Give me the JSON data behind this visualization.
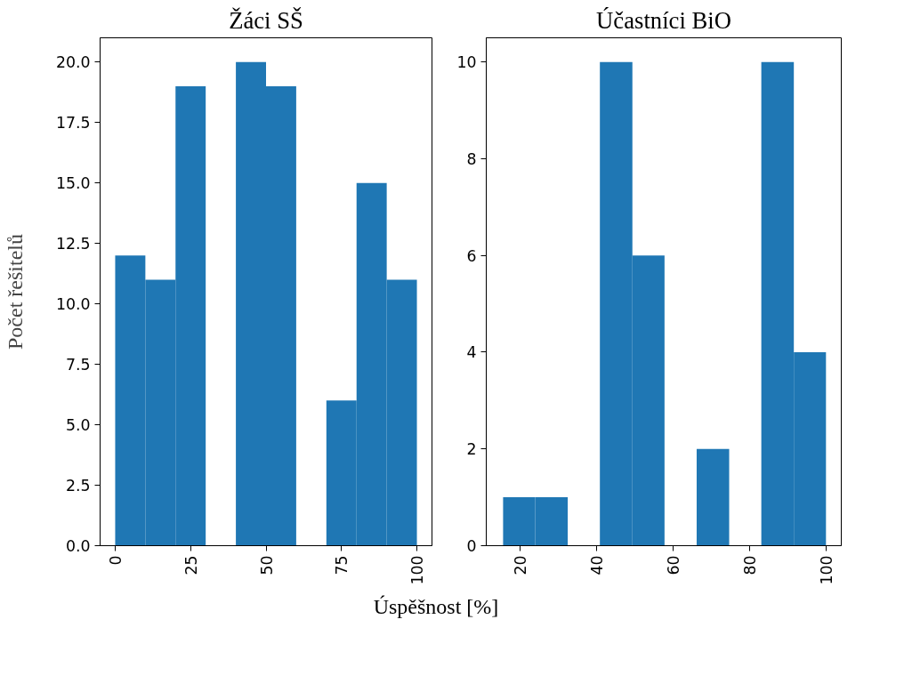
{
  "chart_data": [
    {
      "type": "histogram",
      "title": "Žáci SŠ",
      "ylabel": "Počet řešitelů",
      "xlabel": "Úspěšnost [%]",
      "bins": [
        0,
        10,
        20,
        30,
        40,
        50,
        60,
        70,
        80,
        90,
        100
      ],
      "values": [
        12,
        11,
        19,
        0,
        20,
        19,
        0,
        6,
        15,
        11
      ],
      "color": "#1f77b4",
      "xlim": [
        -5,
        105
      ],
      "ylim": [
        0,
        21
      ],
      "xticks": [
        0,
        25,
        50,
        75,
        100
      ],
      "yticks": [
        {
          "value": 0,
          "label": "0.0"
        },
        {
          "value": 2.5,
          "label": "2.5"
        },
        {
          "value": 5,
          "label": "5.0"
        },
        {
          "value": 7.5,
          "label": "7.5"
        },
        {
          "value": 10,
          "label": "10.0"
        },
        {
          "value": 12.5,
          "label": "12.5"
        },
        {
          "value": 15,
          "label": "15.0"
        },
        {
          "value": 17.5,
          "label": "17.5"
        },
        {
          "value": 20,
          "label": "20.0"
        }
      ],
      "grid": false
    },
    {
      "type": "histogram",
      "title": "Účastníci BiO",
      "bins": [
        15.6,
        24.0,
        32.5,
        40.9,
        49.4,
        57.8,
        66.2,
        74.7,
        83.1,
        91.6,
        100
      ],
      "values": [
        1,
        1,
        0,
        10,
        6,
        0,
        2,
        0,
        10,
        4
      ],
      "color": "#1f77b4",
      "xlim": [
        11.2,
        104
      ],
      "ylim": [
        0,
        10.5
      ],
      "xticks": [
        20,
        40,
        60,
        80,
        100
      ],
      "yticks": [
        0,
        2,
        4,
        6,
        8,
        10
      ],
      "grid": false
    }
  ]
}
